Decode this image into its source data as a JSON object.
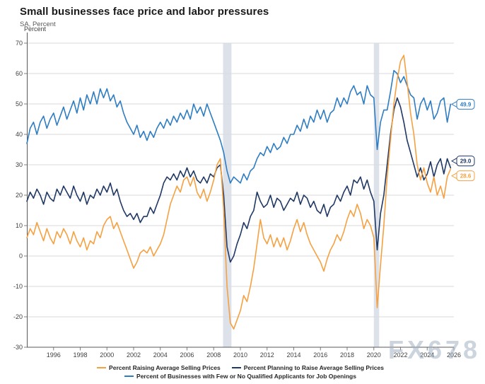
{
  "header": {
    "title": "Small businesses face price and labor pressures",
    "subtitle": "SA, Percent"
  },
  "watermark": "FX678",
  "colors": {
    "raising_prices": "#F5A142",
    "planning_to_raise": "#1F3864",
    "few_qualified_applicants": "#2E7DC2",
    "recession_band": "#dde2ea",
    "gridline": "#d9d9d9",
    "axis": "#595959",
    "tick_text": "#404040"
  },
  "chart_data": {
    "type": "line",
    "title": "Small businesses face price and labor pressures",
    "subtitle": "SA, Percent",
    "ylabel": "Percent",
    "xlabel": "",
    "grid": true,
    "legend_position": "bottom",
    "xlim": [
      1994,
      2026
    ],
    "ylim": [
      -30,
      70
    ],
    "y_ticks": [
      70,
      60,
      50,
      40,
      30,
      20,
      10,
      0,
      -10,
      -20,
      -30
    ],
    "x_ticks": [
      1996,
      1998,
      2000,
      2002,
      2004,
      2006,
      2008,
      2010,
      2012,
      2014,
      2016,
      2018,
      2020,
      2022,
      2024,
      2026
    ],
    "recessions": [
      {
        "start": 2008.7,
        "end": 2009.33
      },
      {
        "start": 2020.0,
        "end": 2020.4
      }
    ],
    "x_start": 1994,
    "x_step": 0.25,
    "series": [
      {
        "name": "Percent Raising Average Selling Prices",
        "color": "#F5A142",
        "end_label": "28.6",
        "values": [
          6,
          9,
          7,
          11,
          8,
          5,
          9,
          6,
          4,
          8,
          6,
          9,
          7,
          4,
          8,
          5,
          3,
          6,
          2,
          5,
          4,
          8,
          6,
          10,
          12,
          13,
          9,
          11,
          8,
          5,
          2,
          -1,
          -4,
          -2,
          1,
          2,
          1,
          3,
          0,
          2,
          4,
          7,
          12,
          17,
          20,
          23,
          21,
          25,
          26,
          23,
          26,
          21,
          19,
          22,
          18,
          21,
          25,
          30,
          32,
          15,
          -10,
          -22,
          -24,
          -21,
          -18,
          -13,
          -15,
          -10,
          -4,
          4,
          12,
          6,
          4,
          7,
          3,
          6,
          3,
          6,
          2,
          5,
          9,
          12,
          8,
          11,
          7,
          4,
          2,
          0,
          -2,
          -5,
          -1,
          2,
          4,
          7,
          5,
          8,
          12,
          15,
          13,
          17,
          14,
          9,
          12,
          10,
          6,
          -17,
          -3,
          10,
          26,
          38,
          50,
          58,
          64,
          66,
          57,
          47,
          40,
          30,
          25,
          29,
          24,
          21,
          26,
          20,
          23,
          19,
          26,
          28.6
        ]
      },
      {
        "name": "Percent Planning to Raise Average Selling Prices",
        "color": "#1F3864",
        "end_label": "29.0",
        "values": [
          18,
          21,
          19,
          22,
          20,
          17,
          21,
          19,
          18,
          22,
          20,
          23,
          21,
          19,
          23,
          20,
          18,
          21,
          17,
          20,
          19,
          22,
          20,
          23,
          21,
          24,
          20,
          22,
          18,
          15,
          13,
          14,
          12,
          14,
          11,
          13,
          13,
          16,
          14,
          17,
          20,
          24,
          26,
          25,
          27,
          25,
          28,
          26,
          29,
          26,
          28,
          25,
          24,
          26,
          24,
          27,
          26,
          29,
          30,
          20,
          3,
          -2,
          0,
          4,
          7,
          11,
          9,
          13,
          15,
          21,
          18,
          16,
          17,
          20,
          16,
          19,
          18,
          15,
          17,
          19,
          18,
          21,
          17,
          20,
          19,
          16,
          18,
          15,
          14,
          17,
          13,
          16,
          17,
          20,
          18,
          21,
          23,
          20,
          25,
          24,
          26,
          22,
          25,
          21,
          18,
          2,
          14,
          20,
          30,
          40,
          48,
          52,
          49,
          44,
          38,
          34,
          30,
          26,
          29,
          25,
          27,
          31,
          26,
          30,
          32,
          27,
          32,
          29
        ]
      },
      {
        "name": "Percent of Businesses with Few or No Qualified Applicants for Job Openings",
        "color": "#2E7DC2",
        "end_label": "49.9",
        "values": [
          37,
          42,
          44,
          40,
          44,
          46,
          42,
          45,
          47,
          43,
          46,
          49,
          45,
          48,
          51,
          47,
          52,
          48,
          53,
          50,
          54,
          50,
          55,
          52,
          55,
          51,
          53,
          49,
          51,
          47,
          44,
          42,
          40,
          43,
          39,
          41,
          38,
          41,
          39,
          42,
          44,
          42,
          45,
          43,
          46,
          44,
          47,
          45,
          48,
          45,
          50,
          47,
          49,
          46,
          50,
          47,
          44,
          41,
          38,
          34,
          28,
          24,
          26,
          25,
          24,
          27,
          25,
          28,
          29,
          32,
          34,
          33,
          36,
          34,
          37,
          35,
          36,
          39,
          37,
          40,
          40,
          43,
          41,
          45,
          42,
          46,
          44,
          48,
          45,
          48,
          44,
          47,
          48,
          52,
          49,
          52,
          50,
          54,
          56,
          53,
          54,
          50,
          56,
          53,
          52,
          35,
          44,
          48,
          48,
          54,
          61,
          60,
          57,
          59,
          56,
          53,
          52,
          45,
          50,
          52,
          48,
          51,
          45,
          47,
          51,
          52,
          44,
          49.9
        ]
      }
    ]
  }
}
